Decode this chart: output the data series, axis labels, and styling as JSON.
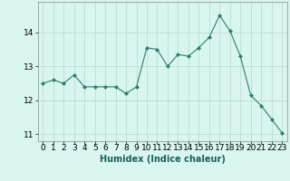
{
  "x": [
    0,
    1,
    2,
    3,
    4,
    5,
    6,
    7,
    8,
    9,
    10,
    11,
    12,
    13,
    14,
    15,
    16,
    17,
    18,
    19,
    20,
    21,
    22,
    23
  ],
  "y": [
    12.5,
    12.6,
    12.5,
    12.75,
    12.4,
    12.4,
    12.4,
    12.4,
    12.2,
    12.4,
    13.55,
    13.5,
    13.0,
    13.35,
    13.3,
    13.55,
    13.85,
    14.5,
    14.05,
    13.3,
    12.15,
    11.85,
    11.45,
    11.05
  ],
  "line_color": "#2e7d6e",
  "marker": "D",
  "marker_size": 2.0,
  "bg_color": "#d8f5f0",
  "grid_color": "#b8d8d0",
  "xlabel": "Humidex (Indice chaleur)",
  "ylim": [
    10.8,
    14.9
  ],
  "xlim": [
    -0.5,
    23.5
  ],
  "yticks": [
    11,
    12,
    13,
    14
  ],
  "xticks": [
    0,
    1,
    2,
    3,
    4,
    5,
    6,
    7,
    8,
    9,
    10,
    11,
    12,
    13,
    14,
    15,
    16,
    17,
    18,
    19,
    20,
    21,
    22,
    23
  ],
  "label_fontsize": 7,
  "tick_fontsize": 6.5
}
